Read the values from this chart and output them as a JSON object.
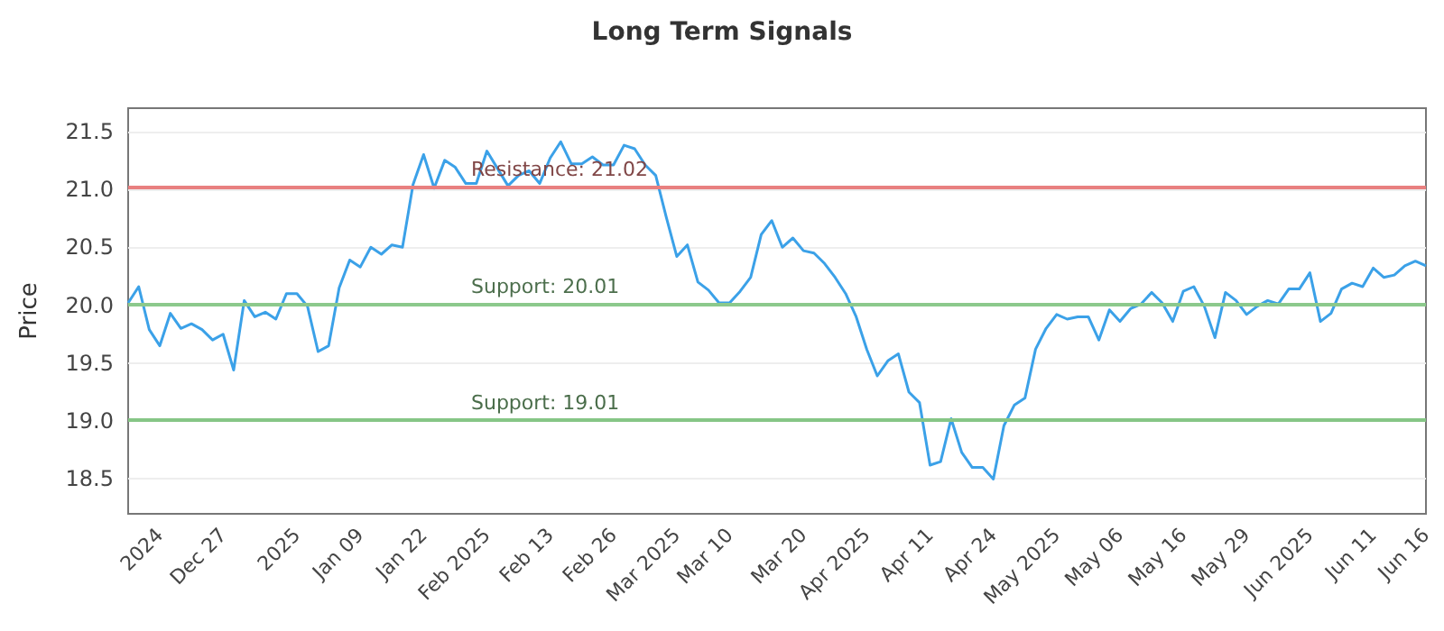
{
  "chart_data": {
    "type": "line",
    "title": "Long Term Signals",
    "ylabel": "Price",
    "categories": [
      null,
      null,
      null,
      "2024",
      null,
      null,
      null,
      null,
      null,
      "Dec 27",
      null,
      null,
      null,
      null,
      null,
      null,
      "2025",
      null,
      null,
      null,
      null,
      null,
      "Jan 09",
      null,
      null,
      null,
      null,
      null,
      "Jan 22",
      null,
      null,
      null,
      null,
      null,
      "Feb 2025",
      null,
      null,
      null,
      null,
      null,
      "Feb 13",
      null,
      null,
      null,
      null,
      null,
      "Feb 26",
      null,
      null,
      null,
      null,
      null,
      "Mar 2025",
      null,
      null,
      null,
      null,
      "Mar 10",
      null,
      null,
      null,
      null,
      null,
      null,
      "Mar 20",
      null,
      null,
      null,
      null,
      null,
      "Apr 2025",
      null,
      null,
      null,
      null,
      null,
      "Apr 11",
      null,
      null,
      null,
      null,
      null,
      "Apr 24",
      null,
      null,
      null,
      null,
      null,
      "May 2025",
      null,
      null,
      null,
      null,
      null,
      "May 06",
      null,
      null,
      null,
      null,
      null,
      "May 16",
      null,
      null,
      null,
      null,
      null,
      "May 29",
      null,
      null,
      null,
      null,
      null,
      "Jun 2025",
      null,
      null,
      null,
      null,
      null,
      "Jun 11",
      null,
      null,
      null,
      null,
      "Jun 16"
    ],
    "series": [
      {
        "color": "#3ba1e8",
        "values": [
          20.02,
          20.16,
          19.79,
          19.65,
          19.93,
          19.8,
          19.84,
          19.79,
          19.7,
          19.75,
          19.44,
          20.04,
          19.9,
          19.94,
          19.88,
          20.1,
          20.1,
          19.99,
          19.6,
          19.65,
          20.15,
          20.39,
          20.33,
          20.5,
          20.44,
          20.52,
          20.5,
          21.04,
          21.3,
          21.01,
          21.25,
          21.19,
          21.05,
          21.05,
          21.33,
          21.18,
          21.03,
          21.12,
          21.16,
          21.05,
          21.27,
          21.41,
          21.22,
          21.22,
          21.28,
          21.21,
          21.21,
          21.38,
          21.35,
          21.21,
          21.12,
          20.76,
          20.42,
          20.52,
          20.2,
          20.13,
          20.02,
          20.02,
          20.12,
          20.24,
          20.61,
          20.73,
          20.5,
          20.58,
          20.47,
          20.45,
          20.36,
          20.24,
          20.1,
          19.9,
          19.62,
          19.39,
          19.52,
          19.58,
          19.25,
          19.16,
          18.62,
          18.65,
          19.02,
          18.73,
          18.6,
          18.6,
          18.5,
          18.96,
          19.14,
          19.2,
          19.62,
          19.8,
          19.92,
          19.88,
          19.9,
          19.9,
          19.7,
          19.96,
          19.86,
          19.97,
          20.01,
          20.11,
          20.02,
          19.86,
          20.12,
          20.16,
          19.99,
          19.72,
          20.11,
          20.04,
          19.92,
          19.99,
          20.04,
          20.01,
          20.14,
          20.14,
          20.28,
          19.86,
          19.93,
          20.14,
          20.19,
          20.16,
          20.32,
          20.24,
          20.26,
          20.34,
          20.38,
          20.34
        ]
      }
    ],
    "ylim": [
      18.2,
      21.7
    ],
    "yticks": [
      18.5,
      {
        "value": 19,
        "label": "19.0"
      },
      19.5,
      {
        "value": 20,
        "label": "20.0"
      },
      20.5,
      {
        "value": 21,
        "label": "21.0"
      },
      21.5
    ],
    "ref_lines": [
      {
        "axis": "y",
        "value": 21.02,
        "label": "Resistance: 21.02",
        "color": "#e88080"
      },
      {
        "axis": "y",
        "value": 20.01,
        "label": "Support: 20.01",
        "color": "#8cc98c"
      },
      {
        "axis": "y",
        "value": 19.01,
        "label": "Support: 19.01",
        "color": "#86c686"
      }
    ],
    "grid": "y",
    "marker": "none",
    "line_style": "solid"
  }
}
